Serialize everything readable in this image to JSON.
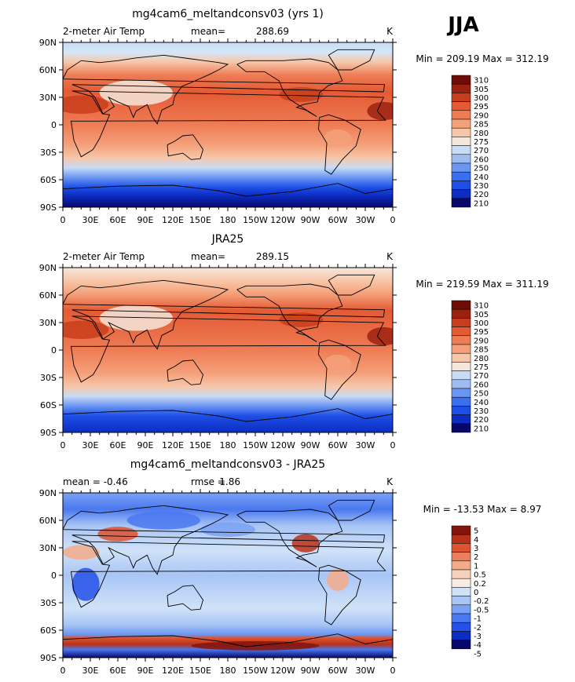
{
  "season": "JJA",
  "units": "K",
  "colors": {
    "abs_scale": [
      "#08086b",
      "#0d2cc2",
      "#1d4fe6",
      "#3a6ff0",
      "#6a96f2",
      "#9ebcf2",
      "#c8dcf6",
      "#f5e6dc",
      "#f7c6a8",
      "#f4a07a",
      "#ee7c55",
      "#e45a33",
      "#c83e1c",
      "#9c2210",
      "#6e0c06"
    ],
    "diff_scale": [
      "#08086b",
      "#0d2cc2",
      "#2451e8",
      "#4a78f0",
      "#7aa1f3",
      "#a8c5f5",
      "#d0e2f8",
      "#f7ece3",
      "#f6d2bc",
      "#f3ac8a",
      "#ec7e5a",
      "#dc5432",
      "#b8321a",
      "#85140a"
    ]
  },
  "chart_data": [
    {
      "type": "heatmap",
      "title": "mg4cam6_meltandconsv03 (yrs 1)",
      "left_label": "2-meter Air Temp",
      "stat_label": "mean=",
      "stat_value": "288.69",
      "units": "K",
      "min_max_label": "Min = 209.19 Max = 312.19",
      "x_ticks": [
        "0",
        "30E",
        "60E",
        "90E",
        "120E",
        "150E",
        "180",
        "150W",
        "120W",
        "90W",
        "60W",
        "30W",
        "0"
      ],
      "y_ticks": [
        "90N",
        "60N",
        "30N",
        "0",
        "30S",
        "60S",
        "90S"
      ],
      "xlim": [
        0,
        360
      ],
      "ylim": [
        -90,
        90
      ],
      "colorbar_levels": [
        "310",
        "305",
        "300",
        "295",
        "290",
        "285",
        "280",
        "275",
        "270",
        "260",
        "250",
        "240",
        "230",
        "220",
        "210"
      ]
    },
    {
      "type": "heatmap",
      "title": "JRA25",
      "left_label": "2-meter Air Temp",
      "stat_label": "mean=",
      "stat_value": "289.15",
      "units": "K",
      "min_max_label": "Min = 219.59 Max = 311.19",
      "x_ticks": [
        "0",
        "30E",
        "60E",
        "90E",
        "120E",
        "150E",
        "180",
        "150W",
        "120W",
        "90W",
        "60W",
        "30W",
        "0"
      ],
      "y_ticks": [
        "90N",
        "60N",
        "30N",
        "0",
        "30S",
        "60S",
        "90S"
      ],
      "xlim": [
        0,
        360
      ],
      "ylim": [
        -90,
        90
      ],
      "colorbar_levels": [
        "310",
        "305",
        "300",
        "295",
        "290",
        "285",
        "280",
        "275",
        "270",
        "260",
        "250",
        "240",
        "230",
        "220",
        "210"
      ]
    },
    {
      "type": "heatmap",
      "title": "mg4cam6_meltandconsv03 - JRA25",
      "left_label": "mean =   -0.46",
      "stat_label": "rmse =",
      "stat_value": "1.86",
      "units": "K",
      "min_max_label": "Min = -13.53 Max =    8.97",
      "x_ticks": [
        "0",
        "30E",
        "60E",
        "90E",
        "120E",
        "150E",
        "180",
        "150W",
        "120W",
        "90W",
        "60W",
        "30W",
        "0"
      ],
      "y_ticks": [
        "90N",
        "60N",
        "30N",
        "0",
        "30S",
        "60S",
        "90S"
      ],
      "xlim": [
        0,
        360
      ],
      "ylim": [
        -90,
        90
      ],
      "colorbar_levels": [
        "5",
        "4",
        "3",
        "2",
        "1",
        "0.5",
        "0.2",
        "0",
        "-0.2",
        "-0.5",
        "-1",
        "-2",
        "-3",
        "-4",
        "-5"
      ]
    }
  ]
}
